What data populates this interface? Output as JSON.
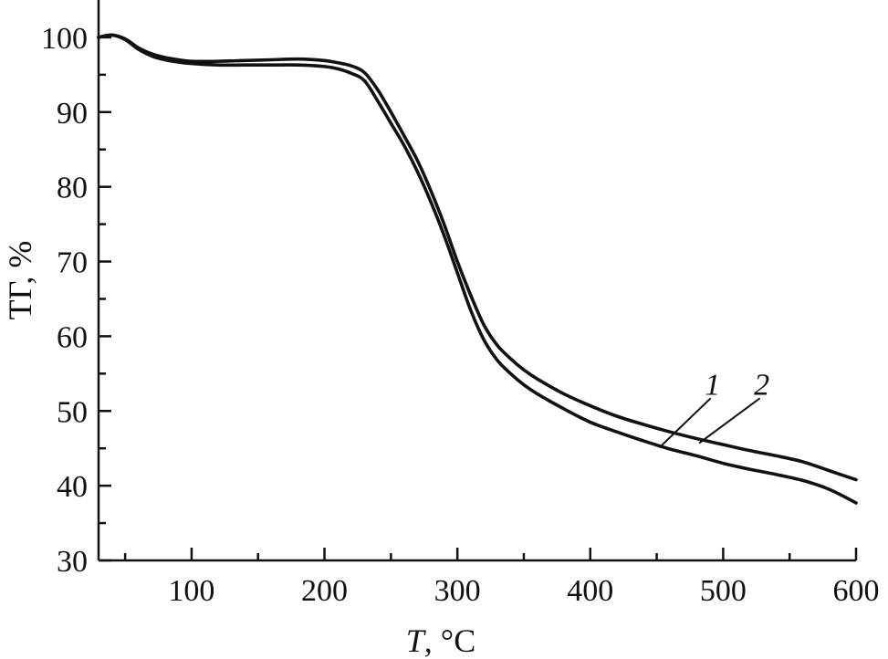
{
  "chart_data": {
    "type": "line",
    "title": "",
    "xlabel_italic": "T",
    "xlabel_rest": ", °C",
    "ylabel": "ТГ, %",
    "xlim": [
      30,
      600
    ],
    "ylim": [
      30,
      105
    ],
    "xticks": [
      100,
      200,
      300,
      400,
      500,
      600
    ],
    "yticks": [
      30,
      40,
      50,
      60,
      70,
      80,
      90,
      100
    ],
    "series": [
      {
        "name": "1",
        "label_x": 492,
        "label_y": 50,
        "x": [
          30,
          40,
          50,
          60,
          70,
          80,
          90,
          100,
          120,
          140,
          160,
          180,
          200,
          210,
          220,
          230,
          240,
          250,
          260,
          270,
          280,
          290,
          300,
          310,
          320,
          330,
          340,
          350,
          360,
          380,
          400,
          420,
          440,
          460,
          480,
          500,
          520,
          540,
          560,
          580,
          600
        ],
        "y": [
          100,
          100.3,
          99.7,
          98.4,
          97.5,
          97.0,
          96.7,
          96.5,
          96.3,
          96.3,
          96.3,
          96.3,
          96.1,
          95.8,
          95.2,
          94.2,
          91.5,
          88.5,
          85.5,
          82.0,
          78.0,
          73.5,
          68.5,
          63.5,
          59.5,
          56.8,
          55.0,
          53.5,
          52.3,
          50.3,
          48.5,
          47.2,
          46.0,
          44.9,
          44.0,
          43.0,
          42.2,
          41.5,
          40.7,
          39.5,
          37.7
        ]
      },
      {
        "name": "2",
        "label_x": 529,
        "label_y": 50,
        "x": [
          30,
          40,
          50,
          60,
          70,
          80,
          90,
          100,
          120,
          140,
          160,
          180,
          200,
          210,
          220,
          230,
          240,
          250,
          260,
          270,
          280,
          290,
          300,
          310,
          320,
          330,
          340,
          350,
          360,
          380,
          400,
          420,
          440,
          460,
          480,
          500,
          520,
          540,
          560,
          580,
          600
        ],
        "y": [
          100,
          100.3,
          99.8,
          98.6,
          97.8,
          97.3,
          97.0,
          96.8,
          96.8,
          96.9,
          97.0,
          97.1,
          96.9,
          96.6,
          96.2,
          95.3,
          93.0,
          90.0,
          86.8,
          83.5,
          79.5,
          75.0,
          70.0,
          65.5,
          61.5,
          58.8,
          57.0,
          55.5,
          54.3,
          52.3,
          50.7,
          49.3,
          48.2,
          47.2,
          46.3,
          45.5,
          44.7,
          44.0,
          43.2,
          42.0,
          40.8
        ]
      }
    ],
    "leader_lines": [
      {
        "series": "1",
        "from": [
          452,
          45.1
        ]
      },
      {
        "series": "2",
        "from": [
          482,
          45.7
        ]
      }
    ]
  }
}
